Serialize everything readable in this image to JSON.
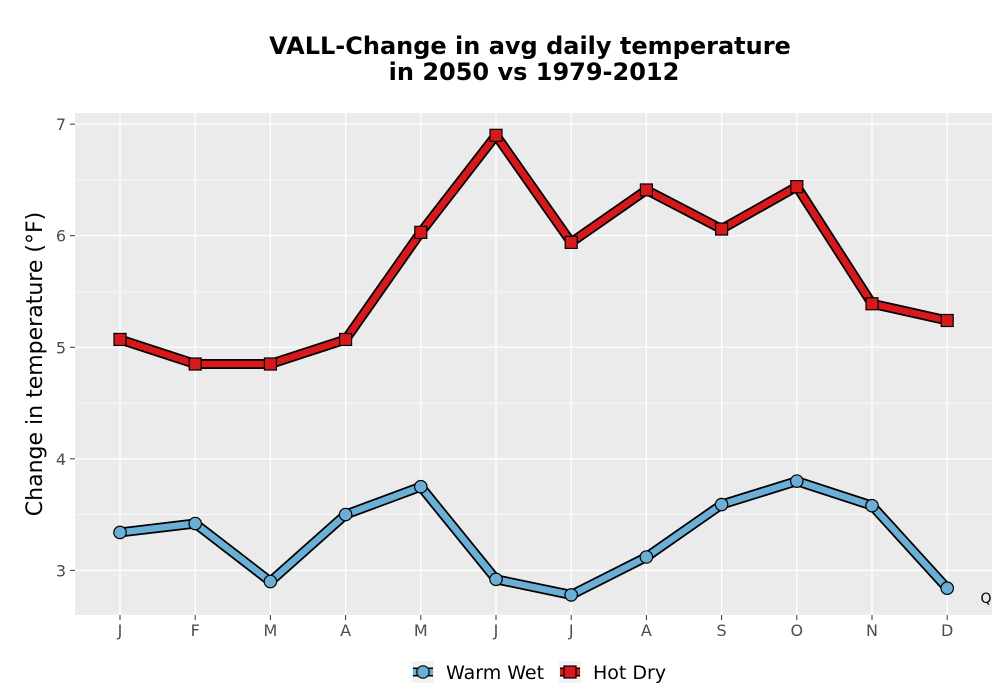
{
  "chart_data": {
    "type": "line",
    "title_line1": "VALL-Change in avg daily temperature",
    "title_line2": "in 2050 vs 1979-2012",
    "ylabel": "Change in temperature (°F)",
    "xlabel": "",
    "categories": [
      "J",
      "F",
      "M",
      "A",
      "M",
      "J",
      "J",
      "A",
      "S",
      "O",
      "N",
      "D"
    ],
    "ylim": [
      2.6,
      7.1
    ],
    "yticks": [
      3,
      4,
      5,
      6,
      7
    ],
    "grid": true,
    "legend_position": "bottom",
    "corner_note": "Q",
    "series": [
      {
        "name": "Warm Wet",
        "marker": "circle",
        "color": "#6baed6",
        "values": [
          3.34,
          3.42,
          2.9,
          3.5,
          3.75,
          2.92,
          2.78,
          3.12,
          3.59,
          3.8,
          3.58,
          2.84
        ]
      },
      {
        "name": "Hot Dry",
        "marker": "square",
        "color": "#d7191c",
        "values": [
          5.07,
          4.85,
          4.85,
          5.07,
          6.03,
          6.9,
          5.94,
          6.41,
          6.06,
          6.44,
          5.39,
          5.24
        ]
      }
    ]
  }
}
